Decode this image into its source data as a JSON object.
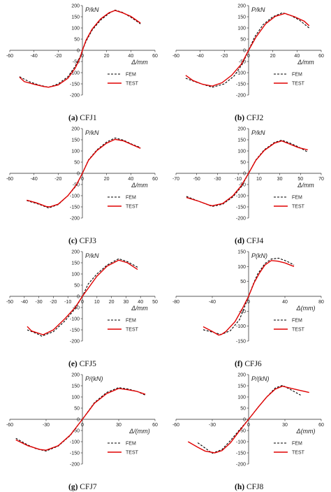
{
  "colors": {
    "fem": "#000000",
    "test": "#e00000",
    "axis": "#222222"
  },
  "chart_data": [
    {
      "type": "line",
      "caption_letter": "(a)",
      "caption_name": "CFJ1",
      "ylabel": "P/kN",
      "xlabel": "Δ/mm",
      "xlim": [
        -60,
        60
      ],
      "ylim": [
        -200,
        200
      ],
      "xticks": [
        "-60",
        "-40",
        "-20",
        "0",
        "20",
        "40",
        "60"
      ],
      "xtick_values": [
        -60,
        -40,
        -20,
        0,
        20,
        40,
        60
      ],
      "yticks": [
        "-200",
        "-150",
        "-100",
        "-50",
        "0",
        "50",
        "100",
        "150",
        "200"
      ],
      "ytick_values": [
        -200,
        -150,
        -100,
        -50,
        0,
        50,
        100,
        150,
        200
      ],
      "legend": [
        "FEM",
        "TEST"
      ],
      "series": [
        {
          "name": "FEM",
          "style": "dashed",
          "x": [
            -52,
            -44,
            -36,
            -28,
            -20,
            -12,
            -6,
            -2,
            0,
            3,
            8,
            15,
            22,
            27,
            33,
            40,
            48
          ],
          "y": [
            -118,
            -140,
            -155,
            -165,
            -150,
            -118,
            -72,
            -30,
            0,
            40,
            90,
            135,
            165,
            180,
            170,
            148,
            118
          ]
        },
        {
          "name": "TEST",
          "style": "solid",
          "x": [
            -52,
            -48,
            -40,
            -32,
            -28,
            -20,
            -12,
            -6,
            -2,
            0,
            3,
            8,
            15,
            22,
            27,
            33,
            40,
            48
          ],
          "y": [
            -120,
            -140,
            -152,
            -162,
            -165,
            -155,
            -125,
            -80,
            -35,
            0,
            45,
            95,
            140,
            168,
            178,
            168,
            152,
            122
          ]
        }
      ]
    },
    {
      "type": "line",
      "caption_letter": "(b)",
      "caption_name": "CFJ2",
      "ylabel": "P/kN",
      "xlabel": "Δ/mm",
      "xlim": [
        -60,
        60
      ],
      "ylim": [
        -200,
        200
      ],
      "xticks": [
        "-60",
        "-40",
        "-20",
        "0",
        "20",
        "40",
        "60"
      ],
      "xtick_values": [
        -60,
        -40,
        -20,
        0,
        20,
        40,
        60
      ],
      "yticks": [
        "-200",
        "-150",
        "-100",
        "-50",
        "0",
        "50",
        "100",
        "150",
        "200"
      ],
      "ytick_values": [
        -200,
        -150,
        -100,
        -50,
        0,
        50,
        100,
        150,
        200
      ],
      "legend": [
        "FEM",
        "TEST"
      ],
      "series": [
        {
          "name": "FEM",
          "style": "dashed",
          "x": [
            -52,
            -42,
            -30,
            -20,
            -12,
            -5,
            0,
            5,
            12,
            20,
            28,
            35,
            42,
            50
          ],
          "y": [
            -125,
            -145,
            -165,
            -150,
            -115,
            -60,
            0,
            60,
            115,
            150,
            168,
            155,
            135,
            100
          ]
        },
        {
          "name": "TEST",
          "style": "solid",
          "x": [
            -52,
            -46,
            -38,
            -30,
            -22,
            -14,
            -6,
            0,
            6,
            14,
            22,
            30,
            38,
            46,
            50
          ],
          "y": [
            -112,
            -135,
            -152,
            -160,
            -145,
            -112,
            -62,
            0,
            58,
            118,
            152,
            165,
            150,
            130,
            110
          ]
        }
      ]
    },
    {
      "type": "line",
      "caption_letter": "(c)",
      "caption_name": "CFJ3",
      "ylabel": "P/kN",
      "xlabel": "Δ/mm",
      "xlim": [
        -60,
        60
      ],
      "ylim": [
        -200,
        200
      ],
      "xticks": [
        "-60",
        "-40",
        "-20",
        "0",
        "20",
        "40",
        "60"
      ],
      "xtick_values": [
        -60,
        -40,
        -20,
        0,
        20,
        40,
        60
      ],
      "yticks": [
        "-200",
        "-150",
        "-100",
        "-50",
        "0",
        "50",
        "100",
        "150",
        "200"
      ],
      "ytick_values": [
        -200,
        -150,
        -100,
        -50,
        0,
        50,
        100,
        150,
        200
      ],
      "legend": [
        "FEM",
        "TEST"
      ],
      "series": [
        {
          "name": "FEM",
          "style": "dashed",
          "x": [
            -46,
            -36,
            -28,
            -20,
            -12,
            -5,
            0,
            5,
            12,
            20,
            27,
            34,
            41,
            48
          ],
          "y": [
            -122,
            -138,
            -155,
            -140,
            -100,
            -55,
            0,
            60,
            105,
            140,
            158,
            148,
            130,
            115
          ]
        },
        {
          "name": "TEST",
          "style": "solid",
          "x": [
            -46,
            -38,
            -30,
            -27,
            -20,
            -12,
            -5,
            0,
            5,
            12,
            20,
            27,
            34,
            41,
            48
          ],
          "y": [
            -120,
            -132,
            -148,
            -150,
            -138,
            -100,
            -52,
            0,
            58,
            102,
            135,
            152,
            145,
            128,
            112
          ]
        }
      ]
    },
    {
      "type": "line",
      "caption_letter": "(d)",
      "caption_name": "CFJ4",
      "ylabel": "P/kN",
      "xlabel": "Δ/mm",
      "xlim": [
        -70,
        70
      ],
      "ylim": [
        -200,
        200
      ],
      "xticks": [
        "-70",
        "-50",
        "-30",
        "-10",
        "10",
        "30",
        "50",
        "70"
      ],
      "xtick_values": [
        -70,
        -50,
        -30,
        -10,
        10,
        30,
        50,
        70
      ],
      "yticks": [
        "-200",
        "-150",
        "-100",
        "-50",
        "0",
        "50",
        "100",
        "150",
        "200"
      ],
      "ytick_values": [
        -200,
        -150,
        -100,
        -50,
        0,
        50,
        100,
        150,
        200
      ],
      "legend": [
        "FEM",
        "TEST"
      ],
      "series": [
        {
          "name": "FEM",
          "style": "dashed",
          "x": [
            -60,
            -48,
            -35,
            -25,
            -15,
            -7,
            0,
            7,
            15,
            25,
            32,
            40,
            48,
            57
          ],
          "y": [
            -103,
            -125,
            -148,
            -138,
            -105,
            -60,
            0,
            60,
            105,
            138,
            148,
            135,
            118,
            95
          ]
        },
        {
          "name": "TEST",
          "style": "solid",
          "x": [
            -60,
            -48,
            -38,
            -35,
            -25,
            -15,
            -7,
            0,
            7,
            15,
            25,
            32,
            40,
            48,
            57
          ],
          "y": [
            -108,
            -125,
            -142,
            -145,
            -135,
            -100,
            -55,
            0,
            58,
            102,
            135,
            145,
            130,
            115,
            105
          ]
        }
      ]
    },
    {
      "type": "line",
      "caption_letter": "(e)",
      "caption_name": "CFJ5",
      "ylabel": "P/kN",
      "xlabel": "Δ/mm",
      "xlim": [
        -50,
        50
      ],
      "ylim": [
        -200,
        200
      ],
      "xticks": [
        "-50",
        "-40",
        "-30",
        "-20",
        "-10",
        "0",
        "10",
        "20",
        "30",
        "40",
        "50"
      ],
      "xtick_values": [
        -50,
        -40,
        -30,
        -20,
        -10,
        0,
        10,
        20,
        30,
        40,
        50
      ],
      "yticks": [
        "-200",
        "-150",
        "-100",
        "-50",
        "0",
        "50",
        "100",
        "150",
        "200"
      ],
      "ytick_values": [
        -200,
        -150,
        -100,
        -50,
        0,
        50,
        100,
        150,
        200
      ],
      "legend": [
        "FEM",
        "TEST"
      ],
      "series": [
        {
          "name": "FEM",
          "style": "dashed",
          "x": [
            -38,
            -32,
            -28,
            -20,
            -12,
            -5,
            0,
            4,
            10,
            17,
            25,
            31,
            38
          ],
          "y": [
            -150,
            -165,
            -178,
            -158,
            -110,
            -55,
            0,
            55,
            100,
            140,
            168,
            155,
            130
          ]
        },
        {
          "name": "TEST",
          "style": "solid",
          "x": [
            -38,
            -35,
            -27,
            -20,
            -12,
            -5,
            0,
            5,
            10,
            17,
            25,
            31,
            38
          ],
          "y": [
            -135,
            -155,
            -172,
            -150,
            -100,
            -50,
            0,
            45,
            90,
            135,
            162,
            150,
            120
          ]
        }
      ]
    },
    {
      "type": "line",
      "caption_letter": "(f)",
      "caption_name": "CFJ6",
      "ylabel": "P(kN)",
      "xlabel": "Δ(mm)",
      "xlim": [
        -80,
        80
      ],
      "ylim": [
        -150,
        150
      ],
      "xticks": [
        "-80",
        "-40",
        "0",
        "40",
        "80"
      ],
      "xtick_values": [
        -80,
        -40,
        0,
        40,
        80
      ],
      "yticks": [
        "-150",
        "-100",
        "-50",
        "50",
        "100",
        "150"
      ],
      "ytick_values": [
        -150,
        -100,
        -50,
        50,
        100,
        150
      ],
      "legend": [
        "FEM",
        "TEST"
      ],
      "series": [
        {
          "name": "FEM",
          "style": "dashed",
          "x": [
            -50,
            -40,
            -30,
            -20,
            -10,
            -5,
            0,
            5,
            10,
            18,
            25,
            33,
            42,
            50
          ],
          "y": [
            -112,
            -120,
            -128,
            -115,
            -78,
            -40,
            0,
            40,
            75,
            110,
            125,
            128,
            118,
            105
          ]
        },
        {
          "name": "TEST",
          "style": "solid",
          "x": [
            -50,
            -40,
            -33,
            -30,
            -25,
            -15,
            -7,
            0,
            6,
            12,
            18,
            25,
            32,
            40,
            50
          ],
          "y": [
            -102,
            -118,
            -130,
            -128,
            -118,
            -85,
            -42,
            0,
            45,
            78,
            105,
            120,
            118,
            112,
            100
          ]
        }
      ]
    },
    {
      "type": "line",
      "caption_letter": "(g)",
      "caption_name": "CFJ7",
      "ylabel": "P/(kN)",
      "xlabel": "Δ/(mm)",
      "xlim": [
        -60,
        60
      ],
      "ylim": [
        -200,
        200
      ],
      "xticks": [
        "-60",
        "-30",
        "0",
        "30",
        "60"
      ],
      "xtick_values": [
        -60,
        -30,
        0,
        30,
        60
      ],
      "yticks": [
        "-200",
        "-150",
        "-100",
        "-50",
        "0",
        "50",
        "100",
        "150",
        "200"
      ],
      "ytick_values": [
        -200,
        -150,
        -100,
        -50,
        0,
        50,
        100,
        150,
        200
      ],
      "legend": [
        "FEM",
        "TEST"
      ],
      "series": [
        {
          "name": "FEM",
          "style": "dashed",
          "x": [
            -55,
            -45,
            -38,
            -30,
            -20,
            -10,
            0,
            10,
            20,
            30,
            38,
            45,
            52
          ],
          "y": [
            -85,
            -115,
            -132,
            -142,
            -120,
            -72,
            0,
            75,
            120,
            142,
            135,
            125,
            108
          ]
        },
        {
          "name": "TEST",
          "style": "solid",
          "x": [
            -55,
            -45,
            -35,
            -30,
            -20,
            -10,
            0,
            10,
            20,
            30,
            38,
            45,
            52
          ],
          "y": [
            -92,
            -118,
            -135,
            -138,
            -118,
            -70,
            0,
            72,
            115,
            138,
            132,
            125,
            112
          ]
        }
      ]
    },
    {
      "type": "line",
      "caption_letter": "(h)",
      "caption_name": "CFJ8",
      "ylabel": "P/(kN)",
      "xlabel": "Δ(mm)",
      "xlim": [
        -60,
        60
      ],
      "ylim": [
        -200,
        200
      ],
      "xticks": [
        "-60",
        "-30",
        "0",
        "30",
        "60"
      ],
      "xtick_values": [
        -60,
        -30,
        0,
        30,
        60
      ],
      "yticks": [
        "-200",
        "-150",
        "-100",
        "-50",
        "0",
        "50",
        "100",
        "150",
        "200"
      ],
      "ytick_values": [
        -200,
        -150,
        -100,
        -50,
        0,
        50,
        100,
        150,
        200
      ],
      "legend": [
        "FEM",
        "TEST"
      ],
      "series": [
        {
          "name": "FEM",
          "style": "dashed",
          "x": [
            -42,
            -36,
            -30,
            -22,
            -15,
            -8,
            0,
            8,
            15,
            22,
            28,
            34,
            43
          ],
          "y": [
            -105,
            -128,
            -152,
            -135,
            -95,
            -50,
            0,
            55,
            100,
            140,
            152,
            135,
            108
          ]
        },
        {
          "name": "TEST",
          "style": "solid",
          "x": [
            -50,
            -42,
            -36,
            -28,
            -22,
            -15,
            -8,
            0,
            8,
            15,
            22,
            28,
            34,
            42,
            50
          ],
          "y": [
            -100,
            -125,
            -142,
            -150,
            -140,
            -105,
            -55,
            0,
            55,
            100,
            135,
            148,
            140,
            130,
            120
          ]
        }
      ]
    }
  ]
}
